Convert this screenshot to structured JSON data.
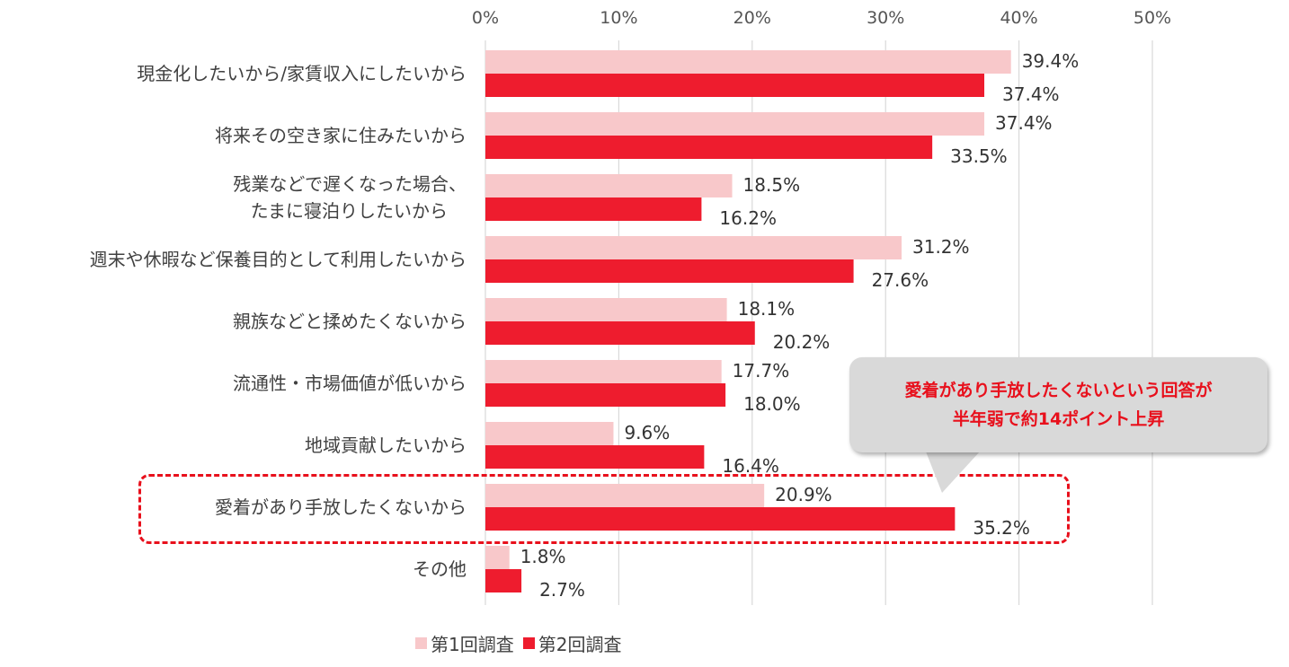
{
  "chart_data": {
    "type": "bar",
    "orientation": "horizontal",
    "categories": [
      "現金化したいから/家賃収入にしたいから",
      "将来その空き家に住みたいから",
      "残業などで遅くなった場合、\nたまに寝泊りしたいから",
      "週末や休暇など保養目的として利用したいから",
      "親族などと揉めたくないから",
      "流通性・市場価値が低いから",
      "地域貢献したいから",
      "愛着があり手放したくないから",
      "その他"
    ],
    "series": [
      {
        "name": "第1回調査",
        "color": "#f8c8ca",
        "values": [
          39.4,
          37.4,
          18.5,
          31.2,
          18.1,
          17.7,
          9.6,
          20.9,
          1.8
        ]
      },
      {
        "name": "第2回調査",
        "color": "#ee1c2e",
        "values": [
          37.4,
          33.5,
          16.2,
          27.6,
          20.2,
          18.0,
          16.4,
          35.2,
          2.7
        ]
      }
    ],
    "xlim": [
      0,
      50
    ],
    "xticks": [
      0,
      10,
      20,
      30,
      40,
      50
    ],
    "tick_suffix": "%",
    "value_suffix": "%",
    "grid": true,
    "legend_position": "bottom",
    "highlight_category": "愛着があり手放したくないから"
  },
  "callout": {
    "line1": "愛着があり手放したくないという回答が",
    "line2": "半年弱で約14ポイント上昇"
  },
  "legend": {
    "items": [
      {
        "label": "第1回調査",
        "color": "#f8c8ca"
      },
      {
        "label": "第2回調査",
        "color": "#ee1c2e"
      }
    ]
  },
  "colors": {
    "accent": "#e8101c",
    "grid": "#d9d9d9"
  }
}
